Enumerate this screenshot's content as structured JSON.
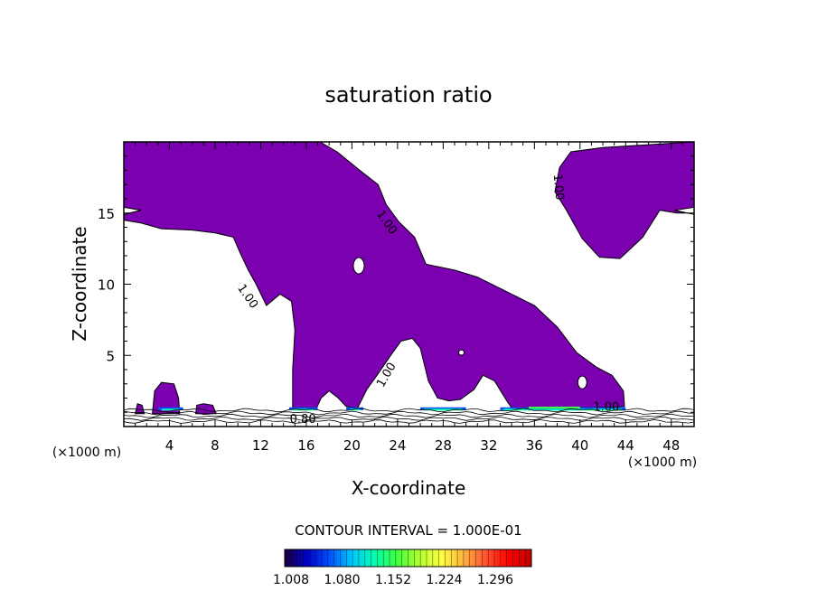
{
  "chart_data": {
    "type": "heatmap",
    "title": "saturation ratio",
    "xlabel": "X-coordinate",
    "ylabel": "Z-coordinate",
    "x_unit_left": "(×1000 m)",
    "x_unit_right": "(×1000 m)",
    "xlim": [
      0,
      50
    ],
    "ylim": [
      0,
      20
    ],
    "x_ticks": [
      4,
      8,
      12,
      16,
      20,
      24,
      28,
      32,
      36,
      40,
      44,
      48
    ],
    "y_ticks": [
      5,
      10,
      15
    ],
    "fill_color": "#7b00b0",
    "contour_labels": [
      {
        "text": "1.00",
        "x": 10.6,
        "y": 9.0,
        "angle": 55
      },
      {
        "text": "1.00",
        "x": 22.8,
        "y": 14.2,
        "angle": 55
      },
      {
        "text": "1.00",
        "x": 37.8,
        "y": 16.8,
        "angle": 85
      },
      {
        "text": "1.00",
        "x": 23.3,
        "y": 3.5,
        "angle": -60
      },
      {
        "text": "1.00",
        "x": 42.3,
        "y": 1.1,
        "angle": 0
      },
      {
        "text": "0.80",
        "x": 15.7,
        "y": 0.25,
        "angle": 0
      }
    ],
    "annotation": "CONTOUR INTERVAL = 1.000E-01",
    "colorbar": {
      "tick_labels": [
        "1.008",
        "1.080",
        "1.152",
        "1.224",
        "1.296"
      ],
      "colors": [
        "#1a0040",
        "#0000c8",
        "#0050ff",
        "#00c8ff",
        "#00ffb0",
        "#40ff40",
        "#b0ff30",
        "#ffff40",
        "#ffb040",
        "#ff5030",
        "#ff0000",
        "#c00000"
      ]
    }
  }
}
